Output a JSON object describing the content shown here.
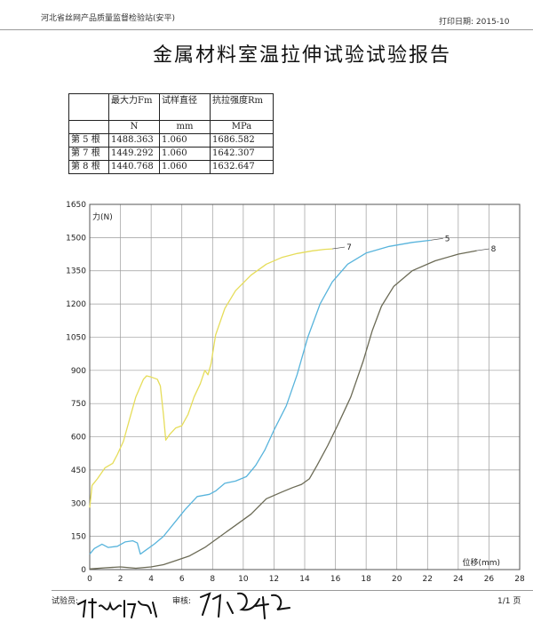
{
  "header": {
    "org": "河北省丝网产品质量监督检验站(安平)",
    "print_date": "打印日期: 2015-10"
  },
  "title": "金属材料室温拉伸试验试验报告",
  "table": {
    "headers": [
      "",
      "最大力Fm",
      "试样直径",
      "抗拉强度Rm"
    ],
    "units": [
      "",
      "N",
      "mm",
      "MPa"
    ],
    "rows": [
      [
        "第 5 根",
        "1488.363",
        "1.060",
        "1686.582"
      ],
      [
        "第 7 根",
        "1449.292",
        "1.060",
        "1642.307"
      ],
      [
        "第 8 根",
        "1440.768",
        "1.060",
        "1632.647"
      ]
    ]
  },
  "chart_data": {
    "type": "line",
    "ylabel": "力(N)",
    "xlabel": "位移(mm)",
    "xlim": [
      0,
      28
    ],
    "ylim": [
      0,
      1650
    ],
    "x_ticks": [
      0,
      2,
      4,
      6,
      8,
      10,
      12,
      14,
      16,
      18,
      20,
      22,
      24,
      26,
      28
    ],
    "y_ticks": [
      0,
      150,
      300,
      450,
      600,
      750,
      900,
      1050,
      1200,
      1350,
      1500,
      1650
    ],
    "grid": true,
    "series": [
      {
        "name": "7",
        "color": "#e6dd5a",
        "points": [
          [
            0,
            280
          ],
          [
            0.15,
            380
          ],
          [
            0.5,
            410
          ],
          [
            1,
            460
          ],
          [
            1.5,
            480
          ],
          [
            1.8,
            520
          ],
          [
            2.2,
            580
          ],
          [
            2.6,
            680
          ],
          [
            3,
            780
          ],
          [
            3.5,
            860
          ],
          [
            3.7,
            875
          ],
          [
            4,
            870
          ],
          [
            4.4,
            860
          ],
          [
            4.6,
            830
          ],
          [
            4.8,
            700
          ],
          [
            4.95,
            585
          ],
          [
            5.2,
            610
          ],
          [
            5.6,
            640
          ],
          [
            6,
            650
          ],
          [
            6.4,
            700
          ],
          [
            6.8,
            780
          ],
          [
            7.2,
            840
          ],
          [
            7.5,
            900
          ],
          [
            7.7,
            880
          ],
          [
            7.9,
            930
          ],
          [
            8.2,
            1060
          ],
          [
            8.8,
            1180
          ],
          [
            9.5,
            1260
          ],
          [
            10.5,
            1330
          ],
          [
            11.5,
            1380
          ],
          [
            12.5,
            1410
          ],
          [
            13.5,
            1428
          ],
          [
            14.5,
            1440
          ],
          [
            15.3,
            1447
          ],
          [
            15.8,
            1449
          ]
        ]
      },
      {
        "name": "5",
        "color": "#58b4dc",
        "points": [
          [
            0,
            70
          ],
          [
            0.3,
            95
          ],
          [
            0.8,
            115
          ],
          [
            1.2,
            100
          ],
          [
            1.8,
            105
          ],
          [
            2.3,
            125
          ],
          [
            2.8,
            130
          ],
          [
            3.1,
            120
          ],
          [
            3.3,
            70
          ],
          [
            3.6,
            85
          ],
          [
            4.2,
            115
          ],
          [
            4.8,
            150
          ],
          [
            5.5,
            210
          ],
          [
            6.2,
            270
          ],
          [
            7.0,
            330
          ],
          [
            7.8,
            340
          ],
          [
            8.2,
            355
          ],
          [
            8.8,
            390
          ],
          [
            9.5,
            400
          ],
          [
            10.2,
            420
          ],
          [
            10.8,
            470
          ],
          [
            11.4,
            540
          ],
          [
            12.0,
            630
          ],
          [
            12.8,
            740
          ],
          [
            13.5,
            880
          ],
          [
            14.2,
            1050
          ],
          [
            15.0,
            1200
          ],
          [
            15.8,
            1300
          ],
          [
            16.8,
            1380
          ],
          [
            18.0,
            1430
          ],
          [
            19.5,
            1460
          ],
          [
            21.0,
            1478
          ],
          [
            22.2,
            1488
          ]
        ]
      },
      {
        "name": "8",
        "color": "#6b6a55",
        "points": [
          [
            0,
            3
          ],
          [
            1.0,
            8
          ],
          [
            2.0,
            12
          ],
          [
            3.0,
            6
          ],
          [
            4.0,
            12
          ],
          [
            4.8,
            22
          ],
          [
            5.5,
            38
          ],
          [
            6.5,
            62
          ],
          [
            7.5,
            100
          ],
          [
            8.5,
            150
          ],
          [
            9.5,
            200
          ],
          [
            10.5,
            250
          ],
          [
            11.5,
            320
          ],
          [
            12.5,
            350
          ],
          [
            13.2,
            370
          ],
          [
            13.8,
            385
          ],
          [
            14.3,
            410
          ],
          [
            14.8,
            470
          ],
          [
            15.5,
            560
          ],
          [
            16.2,
            660
          ],
          [
            17.0,
            780
          ],
          [
            17.8,
            940
          ],
          [
            18.4,
            1080
          ],
          [
            19.0,
            1190
          ],
          [
            19.8,
            1280
          ],
          [
            21.0,
            1350
          ],
          [
            22.5,
            1395
          ],
          [
            24.0,
            1425
          ],
          [
            25.2,
            1441
          ]
        ]
      }
    ]
  },
  "footer": {
    "tester_label": "试验员:",
    "reviewer_label": "审核:",
    "page": "1/1 页"
  }
}
